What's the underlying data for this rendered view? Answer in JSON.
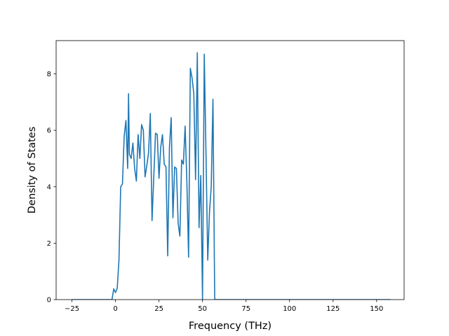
{
  "chart_data": {
    "type": "line",
    "title": "",
    "xlabel": "Frequency (THz)",
    "ylabel": "Density of States",
    "xlim": [
      -34.1,
      165.8
    ],
    "ylim": [
      0,
      9.18
    ],
    "xticks": [
      -25,
      0,
      25,
      50,
      75,
      100,
      125,
      150
    ],
    "yticks": [
      0,
      2,
      4,
      6,
      8
    ],
    "grid": false,
    "legend": "none",
    "series": [
      {
        "color": "#1f77b4",
        "x": [
          -25,
          -2,
          -1,
          0,
          1,
          2,
          3,
          4,
          5,
          6,
          7,
          7.5,
          8,
          9,
          10,
          11,
          12,
          13,
          14,
          15,
          16,
          17,
          18,
          19,
          20,
          21,
          22,
          23,
          24,
          25,
          26,
          27,
          28,
          29,
          30,
          31,
          32,
          33,
          34,
          35,
          36,
          37,
          38,
          39,
          40,
          41,
          42,
          43,
          44,
          45,
          46,
          47,
          48,
          49,
          50,
          51,
          52,
          53,
          54,
          55,
          56,
          57,
          58,
          158
        ],
        "y": [
          0,
          0,
          0.38,
          0.25,
          0.4,
          1.4,
          4.0,
          4.1,
          5.8,
          6.35,
          4.65,
          7.3,
          5.15,
          5.0,
          5.55,
          4.65,
          4.2,
          5.85,
          5.0,
          6.2,
          6.0,
          4.35,
          4.75,
          5.2,
          6.6,
          2.8,
          4.35,
          5.9,
          5.85,
          4.3,
          5.4,
          5.85,
          4.8,
          4.7,
          1.55,
          5.4,
          6.45,
          2.9,
          4.7,
          4.65,
          2.7,
          2.25,
          4.95,
          4.8,
          6.15,
          4.2,
          1.5,
          8.2,
          7.85,
          7.3,
          4.25,
          8.75,
          2.55,
          4.4,
          0.0,
          8.7,
          5.15,
          1.4,
          3.1,
          4.0,
          7.1,
          0,
          0,
          0
        ]
      }
    ]
  }
}
